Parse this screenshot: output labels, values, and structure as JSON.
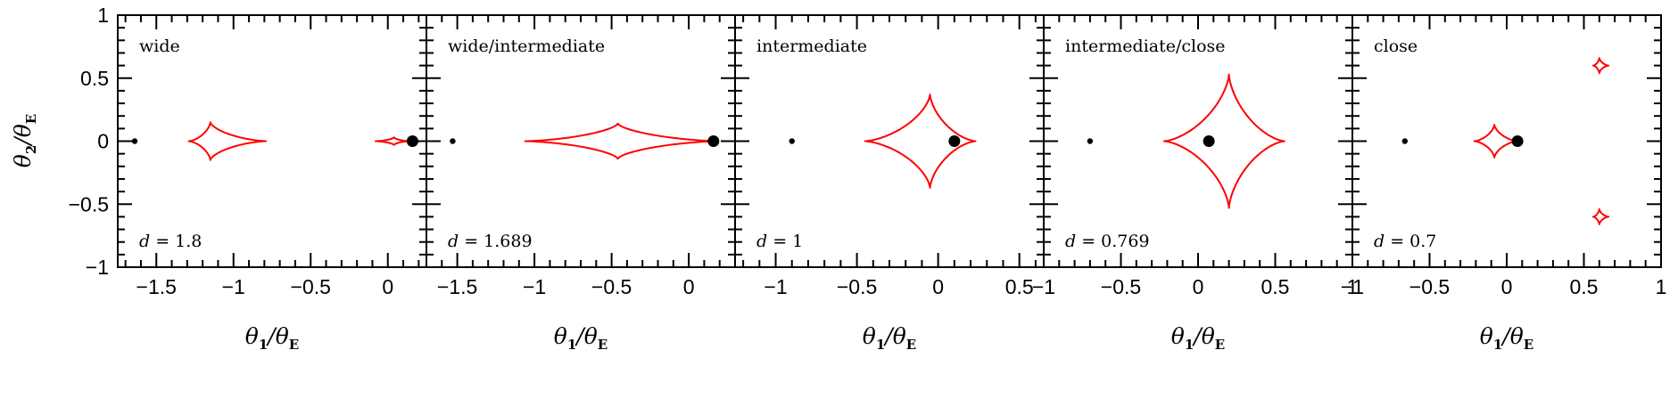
{
  "chart_data": [
    {
      "type": "line",
      "panel_label": "wide",
      "param_symbol": "d",
      "param_value": "1.8",
      "xlabel": "θ1/θE",
      "ylabel": "θ2/θE",
      "xlim": [
        -1.75,
        0.25
      ],
      "ylim": [
        -1,
        1
      ],
      "xticks": [
        -1.5,
        -1,
        -0.5,
        0
      ],
      "xtick_labels": [
        "−1.5",
        "−1",
        "−0.5",
        "0"
      ],
      "yticks": [
        -1,
        -0.5,
        0,
        0.5,
        1
      ],
      "ytick_labels": [
        "−1",
        "−0.5",
        "0",
        "0.5",
        "1"
      ],
      "lenses": [
        {
          "x": -1.64,
          "y": 0,
          "size": "small"
        },
        {
          "x": 0.16,
          "y": 0,
          "size": "large"
        }
      ],
      "caustics": [
        {
          "cx": -1.15,
          "cy": 0,
          "hx_left": 0.14,
          "hx_right": 0.36,
          "hy": 0.15
        },
        {
          "cx": 0.04,
          "cy": 0,
          "hx_left": 0.12,
          "hx_right": 0.1,
          "hy": 0.03
        }
      ]
    },
    {
      "type": "line",
      "panel_label": "wide/intermediate",
      "param_symbol": "d",
      "param_value": "1.689",
      "xlabel": "θ1/θE",
      "ylabel": "",
      "xlim": [
        -1.7,
        0.3
      ],
      "ylim": [
        -1,
        1
      ],
      "xticks": [
        -1.5,
        -1,
        -0.5,
        0
      ],
      "xtick_labels": [
        "−1.5",
        "−1",
        "−0.5",
        "0"
      ],
      "lenses": [
        {
          "x": -1.53,
          "y": 0,
          "size": "small"
        },
        {
          "x": 0.16,
          "y": 0,
          "size": "large"
        }
      ],
      "caustics": [
        {
          "cx": -0.46,
          "cy": 0,
          "hx_left": 0.6,
          "hx_right": 0.65,
          "hy": 0.14
        }
      ]
    },
    {
      "type": "line",
      "panel_label": "intermediate",
      "param_symbol": "d",
      "param_value": "1",
      "xlabel": "θ1/θE",
      "ylabel": "",
      "xlim": [
        -1.25,
        0.65
      ],
      "ylim": [
        -1,
        1
      ],
      "xticks": [
        -1,
        -0.5,
        0,
        0.5
      ],
      "xtick_labels": [
        "−1",
        "−0.5",
        "0",
        "0.5"
      ],
      "lenses": [
        {
          "x": -0.9,
          "y": 0,
          "size": "small"
        },
        {
          "x": 0.1,
          "y": 0,
          "size": "large"
        }
      ],
      "caustics": [
        {
          "cx": -0.05,
          "cy": 0,
          "hx_left": 0.4,
          "hx_right": 0.28,
          "hy": 0.37
        }
      ]
    },
    {
      "type": "line",
      "panel_label": "intermediate/close",
      "param_symbol": "d",
      "param_value": "0.769",
      "xlabel": "θ1/θE",
      "ylabel": "",
      "xlim": [
        -1,
        1
      ],
      "ylim": [
        -1,
        1
      ],
      "xticks": [
        -1,
        -0.5,
        0,
        0.5,
        1
      ],
      "xtick_labels": [
        "−1",
        "−0.5",
        "0",
        "0.5",
        "1"
      ],
      "lenses": [
        {
          "x": -0.7,
          "y": 0,
          "size": "small"
        },
        {
          "x": 0.07,
          "y": 0,
          "size": "large"
        }
      ],
      "caustics": [
        {
          "cx": 0.2,
          "cy": 0,
          "hx_left": 0.42,
          "hx_right": 0.36,
          "hy": 0.53
        }
      ]
    },
    {
      "type": "line",
      "panel_label": "close",
      "param_symbol": "d",
      "param_value": "0.7",
      "xlabel": "θ1/θE",
      "ylabel": "",
      "xlim": [
        -1,
        1
      ],
      "ylim": [
        -1,
        1
      ],
      "xticks": [
        -1,
        -0.5,
        0,
        0.5,
        1
      ],
      "xtick_labels": [
        "−1",
        "−0.5",
        "0",
        "0.5",
        "1"
      ],
      "lenses": [
        {
          "x": -0.66,
          "y": 0,
          "size": "small"
        },
        {
          "x": 0.07,
          "y": 0,
          "size": "large"
        }
      ],
      "caustics": [
        {
          "cx": -0.08,
          "cy": 0,
          "hx_left": 0.13,
          "hx_right": 0.15,
          "hy": 0.13
        },
        {
          "cx": 0.6,
          "cy": 0.6,
          "hx_left": 0.04,
          "hx_right": 0.06,
          "hy": 0.06
        },
        {
          "cx": 0.6,
          "cy": -0.6,
          "hx_left": 0.04,
          "hx_right": 0.06,
          "hy": 0.06
        }
      ]
    }
  ],
  "colors": {
    "caustic": "#ff0000",
    "lens": "#000000",
    "frame": "#000000",
    "background": "#ffffff"
  }
}
